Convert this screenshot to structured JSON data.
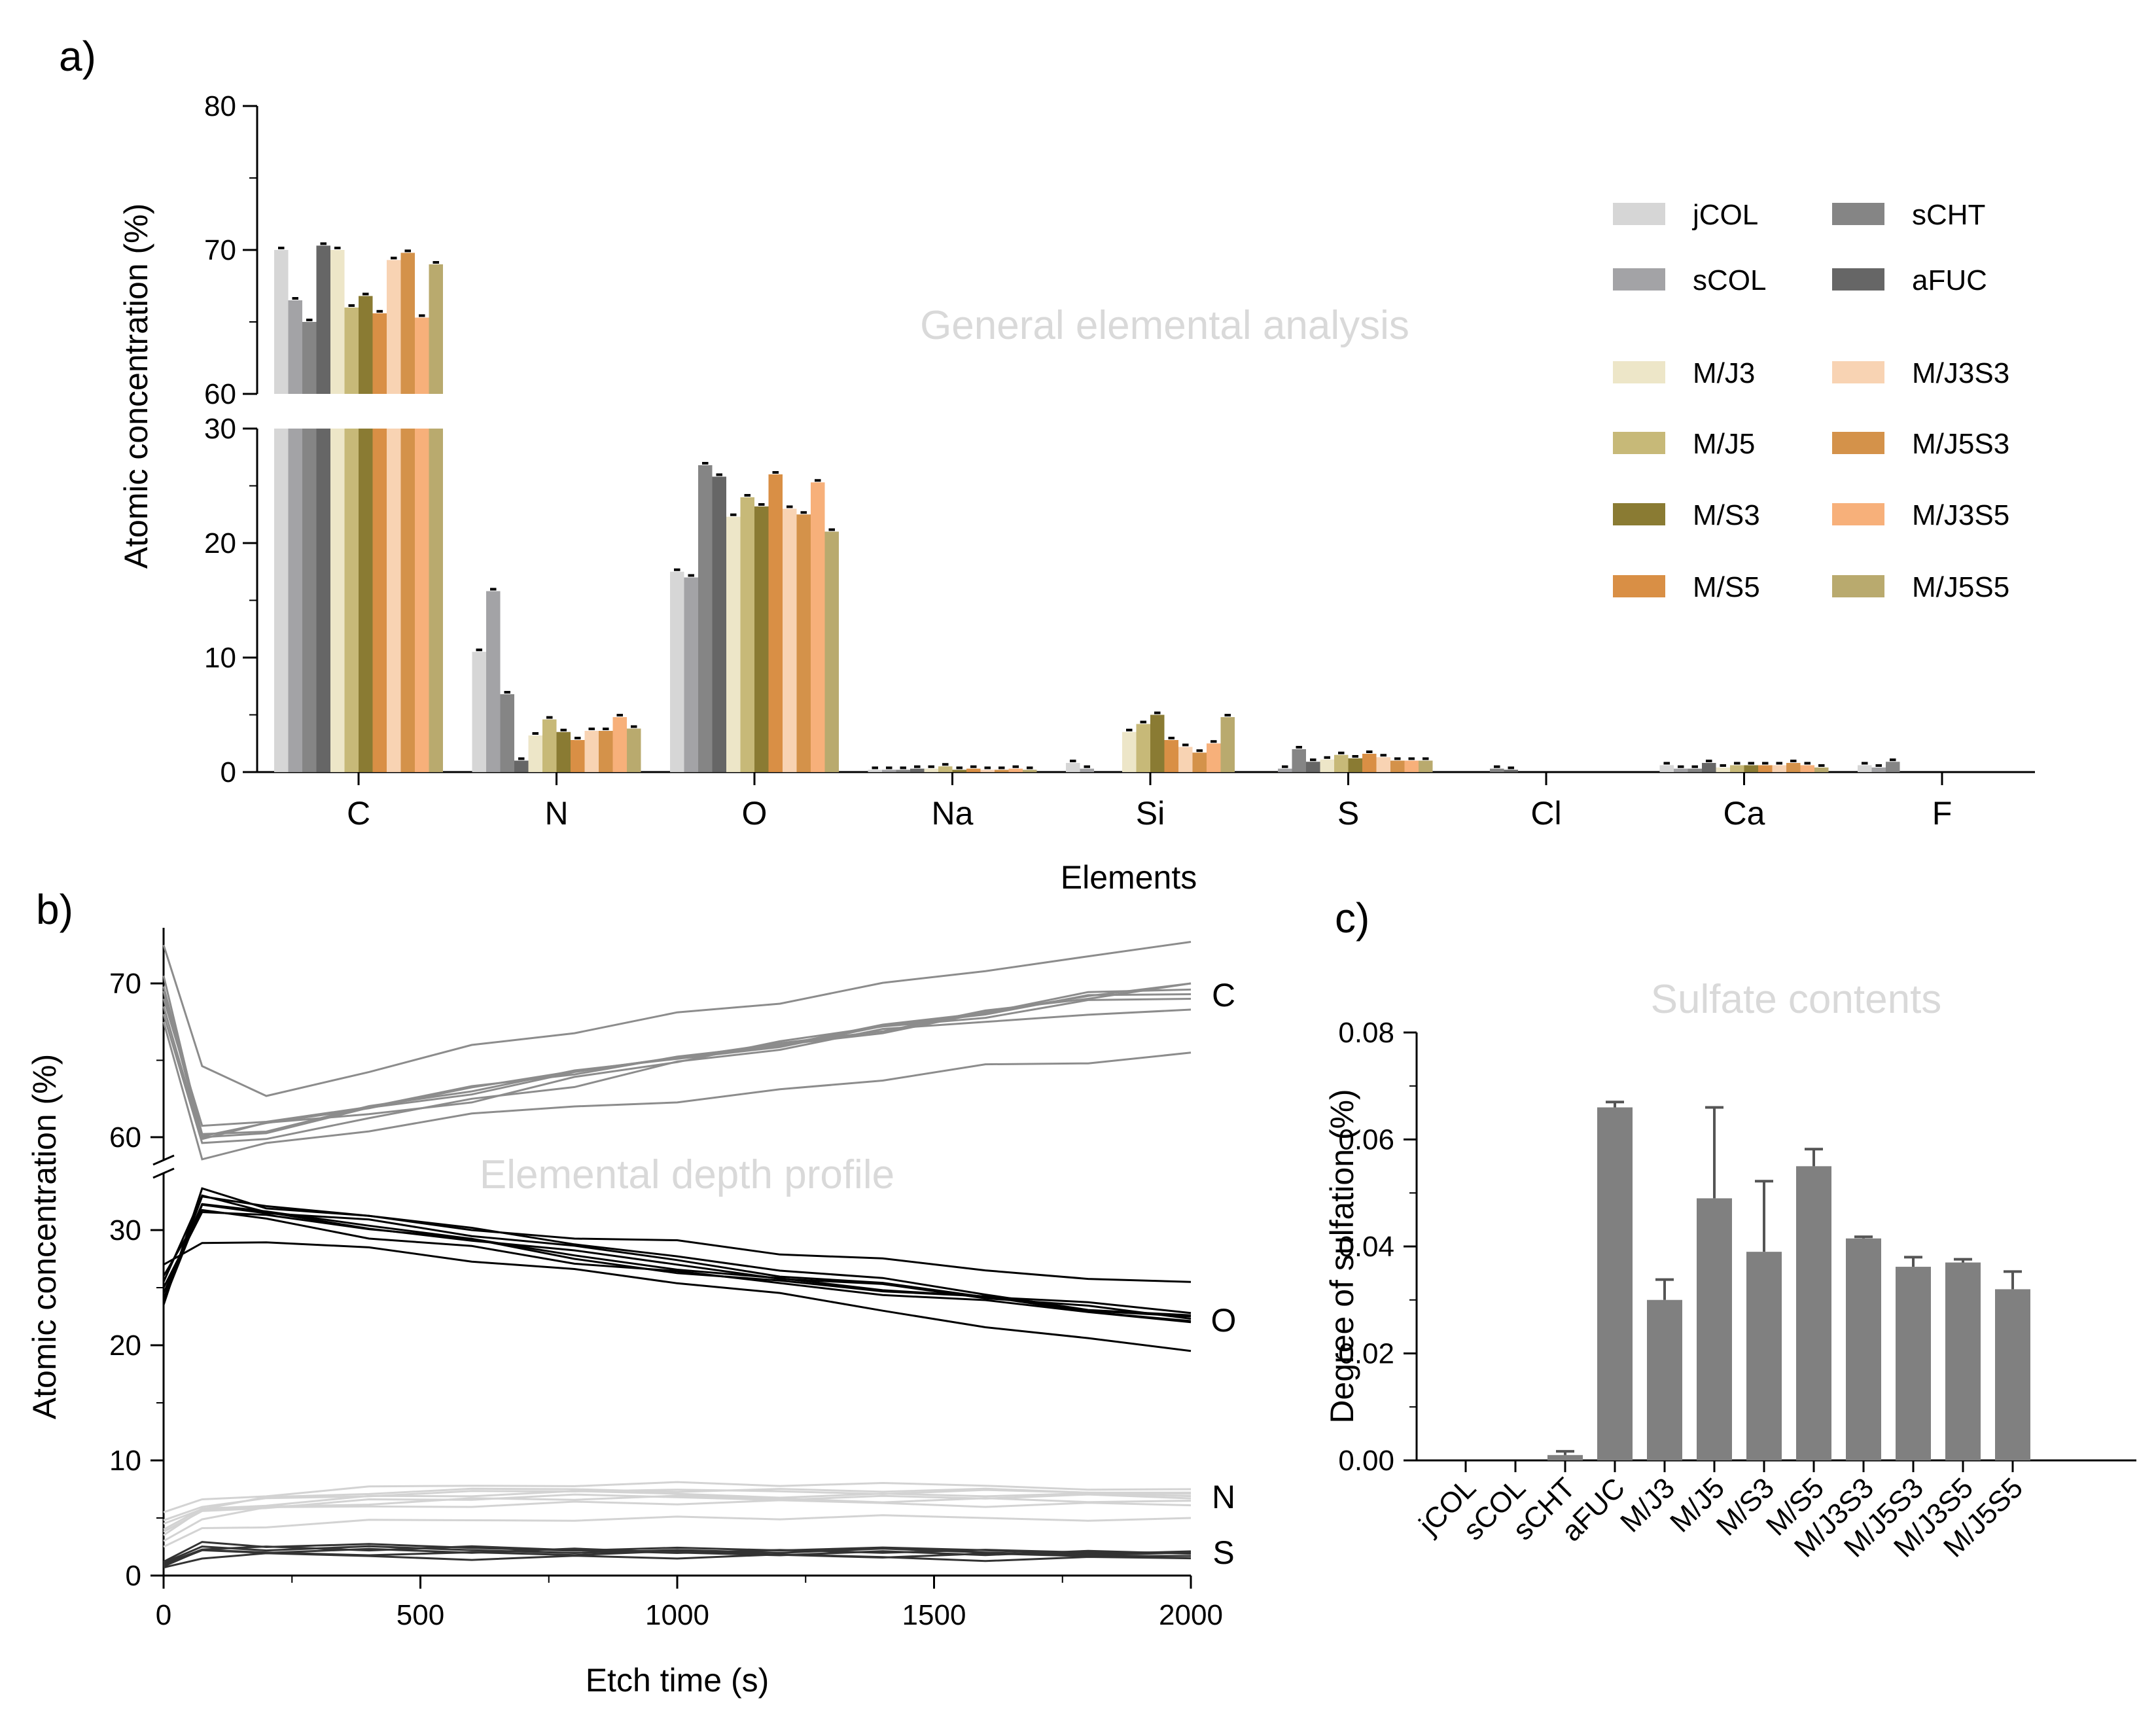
{
  "chart_data": [
    {
      "panel": "a)",
      "type": "bar",
      "watermark": "General elemental analysis",
      "xlabel": "Elements",
      "ylabel": "Atomic concentration (%)",
      "y_axis_break": {
        "lower_range": [
          0,
          30
        ],
        "upper_range": [
          60,
          80
        ]
      },
      "lower_ticks": [
        "0",
        "10",
        "20",
        "30"
      ],
      "upper_ticks": [
        "60",
        "70",
        "80"
      ],
      "categories": [
        "C",
        "N",
        "O",
        "Na",
        "Si",
        "S",
        "Cl",
        "Ca",
        "F"
      ],
      "series": [
        {
          "name": "jCOL",
          "color": "#d6d6d6",
          "values": [
            70.0,
            10.5,
            17.5,
            0.2,
            0.8,
            0.0,
            0.0,
            0.6,
            0.6
          ]
        },
        {
          "name": "sCOL",
          "color": "#a3a3a6",
          "values": [
            66.5,
            15.8,
            17.0,
            0.2,
            0.3,
            0.3,
            0.0,
            0.3,
            0.4
          ]
        },
        {
          "name": "sCHT",
          "color": "#858585",
          "values": [
            65.0,
            6.8,
            26.8,
            0.2,
            0.0,
            2.0,
            0.3,
            0.3,
            0.9
          ]
        },
        {
          "name": "aFUC",
          "color": "#666666",
          "values": [
            70.3,
            1.0,
            25.8,
            0.3,
            0.0,
            0.9,
            0.2,
            0.8,
            0.0
          ]
        },
        {
          "name": "M/J3",
          "color": "#ede6c8",
          "values": [
            70.0,
            3.2,
            22.3,
            0.3,
            3.5,
            1.1,
            0.0,
            0.4,
            0.0
          ]
        },
        {
          "name": "M/J5",
          "color": "#c7b978",
          "values": [
            66.0,
            4.6,
            24.0,
            0.5,
            4.2,
            1.5,
            0.0,
            0.6,
            0.0
          ]
        },
        {
          "name": "M/S3",
          "color": "#8a7b33",
          "values": [
            66.8,
            3.5,
            23.2,
            0.2,
            5.0,
            1.2,
            0.0,
            0.6,
            0.0
          ]
        },
        {
          "name": "M/S5",
          "color": "#d98f45",
          "values": [
            65.6,
            2.8,
            26.0,
            0.3,
            2.8,
            1.6,
            0.0,
            0.6,
            0.0
          ]
        },
        {
          "name": "M/J3S3",
          "color": "#f8d3b3",
          "values": [
            69.3,
            3.6,
            23.0,
            0.2,
            2.2,
            1.3,
            0.0,
            0.6,
            0.0
          ]
        },
        {
          "name": "M/J5S3",
          "color": "#d4924a",
          "values": [
            69.8,
            3.6,
            22.5,
            0.2,
            1.7,
            1.0,
            0.0,
            0.8,
            0.0
          ]
        },
        {
          "name": "M/J3S5",
          "color": "#f7b07a",
          "values": [
            65.3,
            4.8,
            25.3,
            0.3,
            2.5,
            1.0,
            0.0,
            0.6,
            0.0
          ]
        },
        {
          "name": "M/J5S5",
          "color": "#b9aa6e",
          "values": [
            69.0,
            3.8,
            21.0,
            0.2,
            4.8,
            1.0,
            0.0,
            0.4,
            0.0
          ]
        }
      ]
    },
    {
      "panel": "b)",
      "type": "line",
      "watermark": "Elemental depth profile",
      "xlabel": "Etch time (s)",
      "ylabel": "Atomic concentration (%)",
      "xlim": [
        0,
        2000
      ],
      "x_ticks": [
        "0",
        "500",
        "1000",
        "1500",
        "2000"
      ],
      "y_ticks": [
        "0",
        "10",
        "20",
        "30",
        "60",
        "70"
      ],
      "x": [
        0,
        75,
        200,
        400,
        600,
        800,
        1000,
        1200,
        1400,
        1600,
        1800,
        2000
      ],
      "groups": [
        {
          "element": "C",
          "color": "#8c8c8c",
          "series": [
            [
              72.5,
              64.5,
              62.8,
              64.0,
              66.0,
              67.0,
              68.0,
              68.8,
              69.8,
              70.8,
              72.0,
              72.7
            ],
            [
              70.5,
              60.3,
              60.8,
              62.0,
              63.0,
              64.3,
              65.4,
              66.0,
              67.0,
              68.0,
              69.0,
              70.0
            ],
            [
              69.5,
              60.0,
              60.5,
              61.8,
              62.9,
              64.0,
              65.2,
              66.2,
              67.2,
              68.2,
              69.2,
              69.6
            ],
            [
              69.0,
              60.5,
              61.0,
              62.2,
              63.2,
              64.2,
              65.0,
              66.0,
              67.0,
              68.0,
              69.3,
              70.0
            ],
            [
              68.5,
              60.0,
              60.7,
              61.5,
              62.5,
              63.8,
              65.0,
              66.0,
              67.2,
              68.0,
              68.8,
              69.0
            ],
            [
              68.0,
              59.5,
              60.0,
              61.0,
              62.5,
              63.5,
              64.8,
              65.8,
              66.8,
              67.5,
              68.2,
              68.3
            ],
            [
              67.5,
              58.8,
              59.5,
              60.5,
              61.3,
              62.0,
              62.5,
              63.0,
              63.8,
              64.5,
              64.8,
              65.5
            ],
            [
              69.8,
              60.2,
              60.6,
              61.9,
              63.1,
              64.1,
              65.1,
              66.1,
              67.1,
              68.1,
              69.0,
              69.3
            ]
          ]
        },
        {
          "element": "O",
          "color": "#000000",
          "series": [
            [
              23.5,
              33.5,
              32.0,
              31.0,
              30.0,
              29.5,
              29.0,
              28.0,
              27.3,
              26.5,
              26.0,
              25.5
            ],
            [
              24.5,
              32.5,
              31.5,
              30.5,
              29.0,
              27.5,
              26.5,
              25.5,
              24.8,
              24.0,
              23.0,
              22.5
            ],
            [
              25.5,
              33.0,
              31.8,
              30.0,
              29.2,
              28.0,
              27.0,
              26.0,
              25.2,
              24.2,
              23.2,
              22.3
            ],
            [
              26.0,
              31.5,
              31.0,
              29.5,
              28.5,
              27.2,
              26.2,
              25.4,
              24.6,
              23.8,
              23.0,
              22.0
            ],
            [
              27.0,
              29.0,
              28.7,
              28.5,
              27.5,
              26.5,
              25.5,
              24.3,
              23.0,
              21.8,
              20.5,
              19.5
            ],
            [
              24.0,
              32.8,
              32.2,
              31.0,
              30.2,
              29.0,
              27.6,
              26.6,
              25.6,
              24.4,
              23.3,
              22.6
            ],
            [
              25.0,
              31.8,
              31.2,
              30.2,
              29.0,
              27.8,
              26.8,
              25.7,
              24.9,
              24.0,
              22.9,
              22.1
            ],
            [
              23.8,
              32.2,
              31.7,
              30.8,
              29.6,
              28.4,
              27.4,
              26.2,
              25.3,
              24.3,
              23.5,
              22.8
            ]
          ]
        },
        {
          "element": "N",
          "color": "#d3d3d3",
          "series": [
            [
              5.5,
              6.5,
              7.0,
              7.5,
              7.8,
              8.0,
              8.0,
              7.9,
              7.8,
              7.8,
              7.7,
              7.5
            ],
            [
              4.5,
              6.0,
              6.7,
              7.2,
              7.3,
              7.5,
              7.5,
              7.4,
              7.4,
              7.3,
              7.2,
              7.1
            ],
            [
              4.0,
              5.8,
              6.3,
              6.8,
              7.0,
              7.1,
              7.1,
              7.0,
              7.0,
              7.0,
              6.9,
              6.9
            ],
            [
              3.5,
              5.5,
              6.0,
              6.4,
              6.6,
              6.7,
              6.7,
              6.7,
              6.6,
              6.6,
              6.5,
              6.5
            ],
            [
              3.0,
              5.0,
              5.7,
              6.0,
              6.2,
              6.3,
              6.3,
              6.3,
              6.3,
              6.2,
              6.2,
              6.1
            ],
            [
              2.5,
              4.0,
              4.3,
              4.6,
              4.8,
              5.0,
              5.0,
              5.0,
              5.0,
              5.0,
              5.0,
              5.0
            ],
            [
              4.8,
              6.2,
              6.6,
              7.0,
              7.1,
              7.3,
              7.7,
              7.2,
              7.2,
              7.2,
              7.2,
              7.2
            ],
            [
              3.8,
              5.6,
              6.1,
              6.5,
              6.7,
              6.8,
              6.8,
              6.8,
              6.8,
              6.8,
              6.8,
              6.7
            ]
          ]
        },
        {
          "element": "S",
          "color": "#333333",
          "series": [
            [
              1.2,
              2.8,
              2.6,
              2.5,
              2.4,
              2.4,
              2.3,
              2.3,
              2.2,
              2.2,
              2.1,
              2.1
            ],
            [
              1.0,
              2.5,
              2.4,
              2.3,
              2.3,
              2.2,
              2.2,
              2.1,
              2.1,
              2.0,
              2.0,
              2.0
            ],
            [
              0.9,
              2.2,
              2.2,
              2.2,
              2.1,
              2.1,
              2.0,
              2.0,
              2.0,
              1.9,
              1.9,
              1.9
            ],
            [
              0.8,
              2.0,
              2.0,
              2.0,
              1.9,
              1.9,
              1.9,
              1.8,
              1.8,
              1.8,
              1.8,
              1.7
            ],
            [
              0.7,
              1.6,
              1.7,
              1.7,
              1.6,
              1.6,
              1.6,
              1.6,
              1.6,
              1.5,
              1.5,
              1.5
            ],
            [
              1.1,
              2.4,
              2.3,
              2.3,
              2.2,
              2.2,
              2.1,
              2.1,
              2.1,
              2.0,
              2.0,
              2.0
            ]
          ]
        }
      ]
    },
    {
      "panel": "c)",
      "type": "bar",
      "watermark": "Sulfate contents",
      "xlabel": "",
      "ylabel": "Degree of sulfation (%)",
      "ylim": [
        0,
        0.08
      ],
      "y_ticks": [
        "0.00",
        "0.02",
        "0.04",
        "0.06",
        "0.08"
      ],
      "color": "#808080",
      "categories": [
        "jCOL",
        "sCOL",
        "sCHT",
        "aFUC",
        "M/J3",
        "M/J5",
        "M/S3",
        "M/S5",
        "M/J3S3",
        "M/J5S3",
        "M/J3S5",
        "M/J5S5"
      ],
      "values": [
        0.0,
        0.0,
        0.001,
        0.066,
        0.03,
        0.049,
        0.039,
        0.055,
        0.0415,
        0.0362,
        0.037,
        0.032
      ],
      "errors": [
        0.0,
        0.0,
        0.0007,
        0.001,
        0.0038,
        0.017,
        0.0132,
        0.0032,
        0.0003,
        0.0018,
        0.0006,
        0.0033
      ]
    }
  ]
}
